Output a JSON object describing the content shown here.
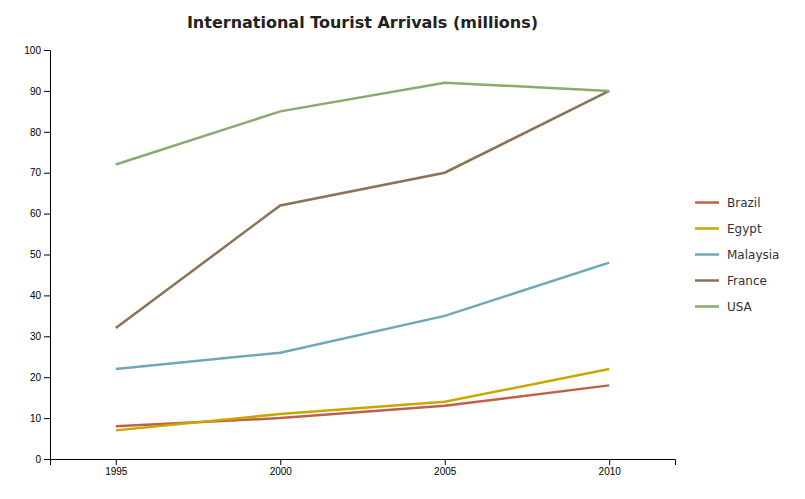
{
  "chart_data": {
    "type": "line",
    "title": "International Tourist Arrivals (millions)",
    "x": [
      1995,
      2000,
      2005,
      2010
    ],
    "series": [
      {
        "name": "Brazil",
        "color": "#c0604a",
        "values": [
          8,
          10,
          13,
          18
        ]
      },
      {
        "name": "Egypt",
        "color": "#c8a800",
        "values": [
          7,
          11,
          14,
          22
        ]
      },
      {
        "name": "Malaysia",
        "color": "#6fa8b8",
        "values": [
          22,
          26,
          35,
          48
        ]
      },
      {
        "name": "France",
        "color": "#8b7355",
        "values": [
          32,
          62,
          70,
          90
        ]
      },
      {
        "name": "USA",
        "color": "#8aaa70",
        "values": [
          72,
          85,
          92,
          90
        ]
      }
    ],
    "xlim": [
      1993,
      2012
    ],
    "ylim": [
      0,
      100
    ],
    "xticks": [
      1995,
      2000,
      2005,
      2010
    ],
    "yticks": [
      0,
      10,
      20,
      30,
      40,
      50,
      60,
      70,
      80,
      90,
      100
    ],
    "grid": false,
    "legend": "right"
  }
}
